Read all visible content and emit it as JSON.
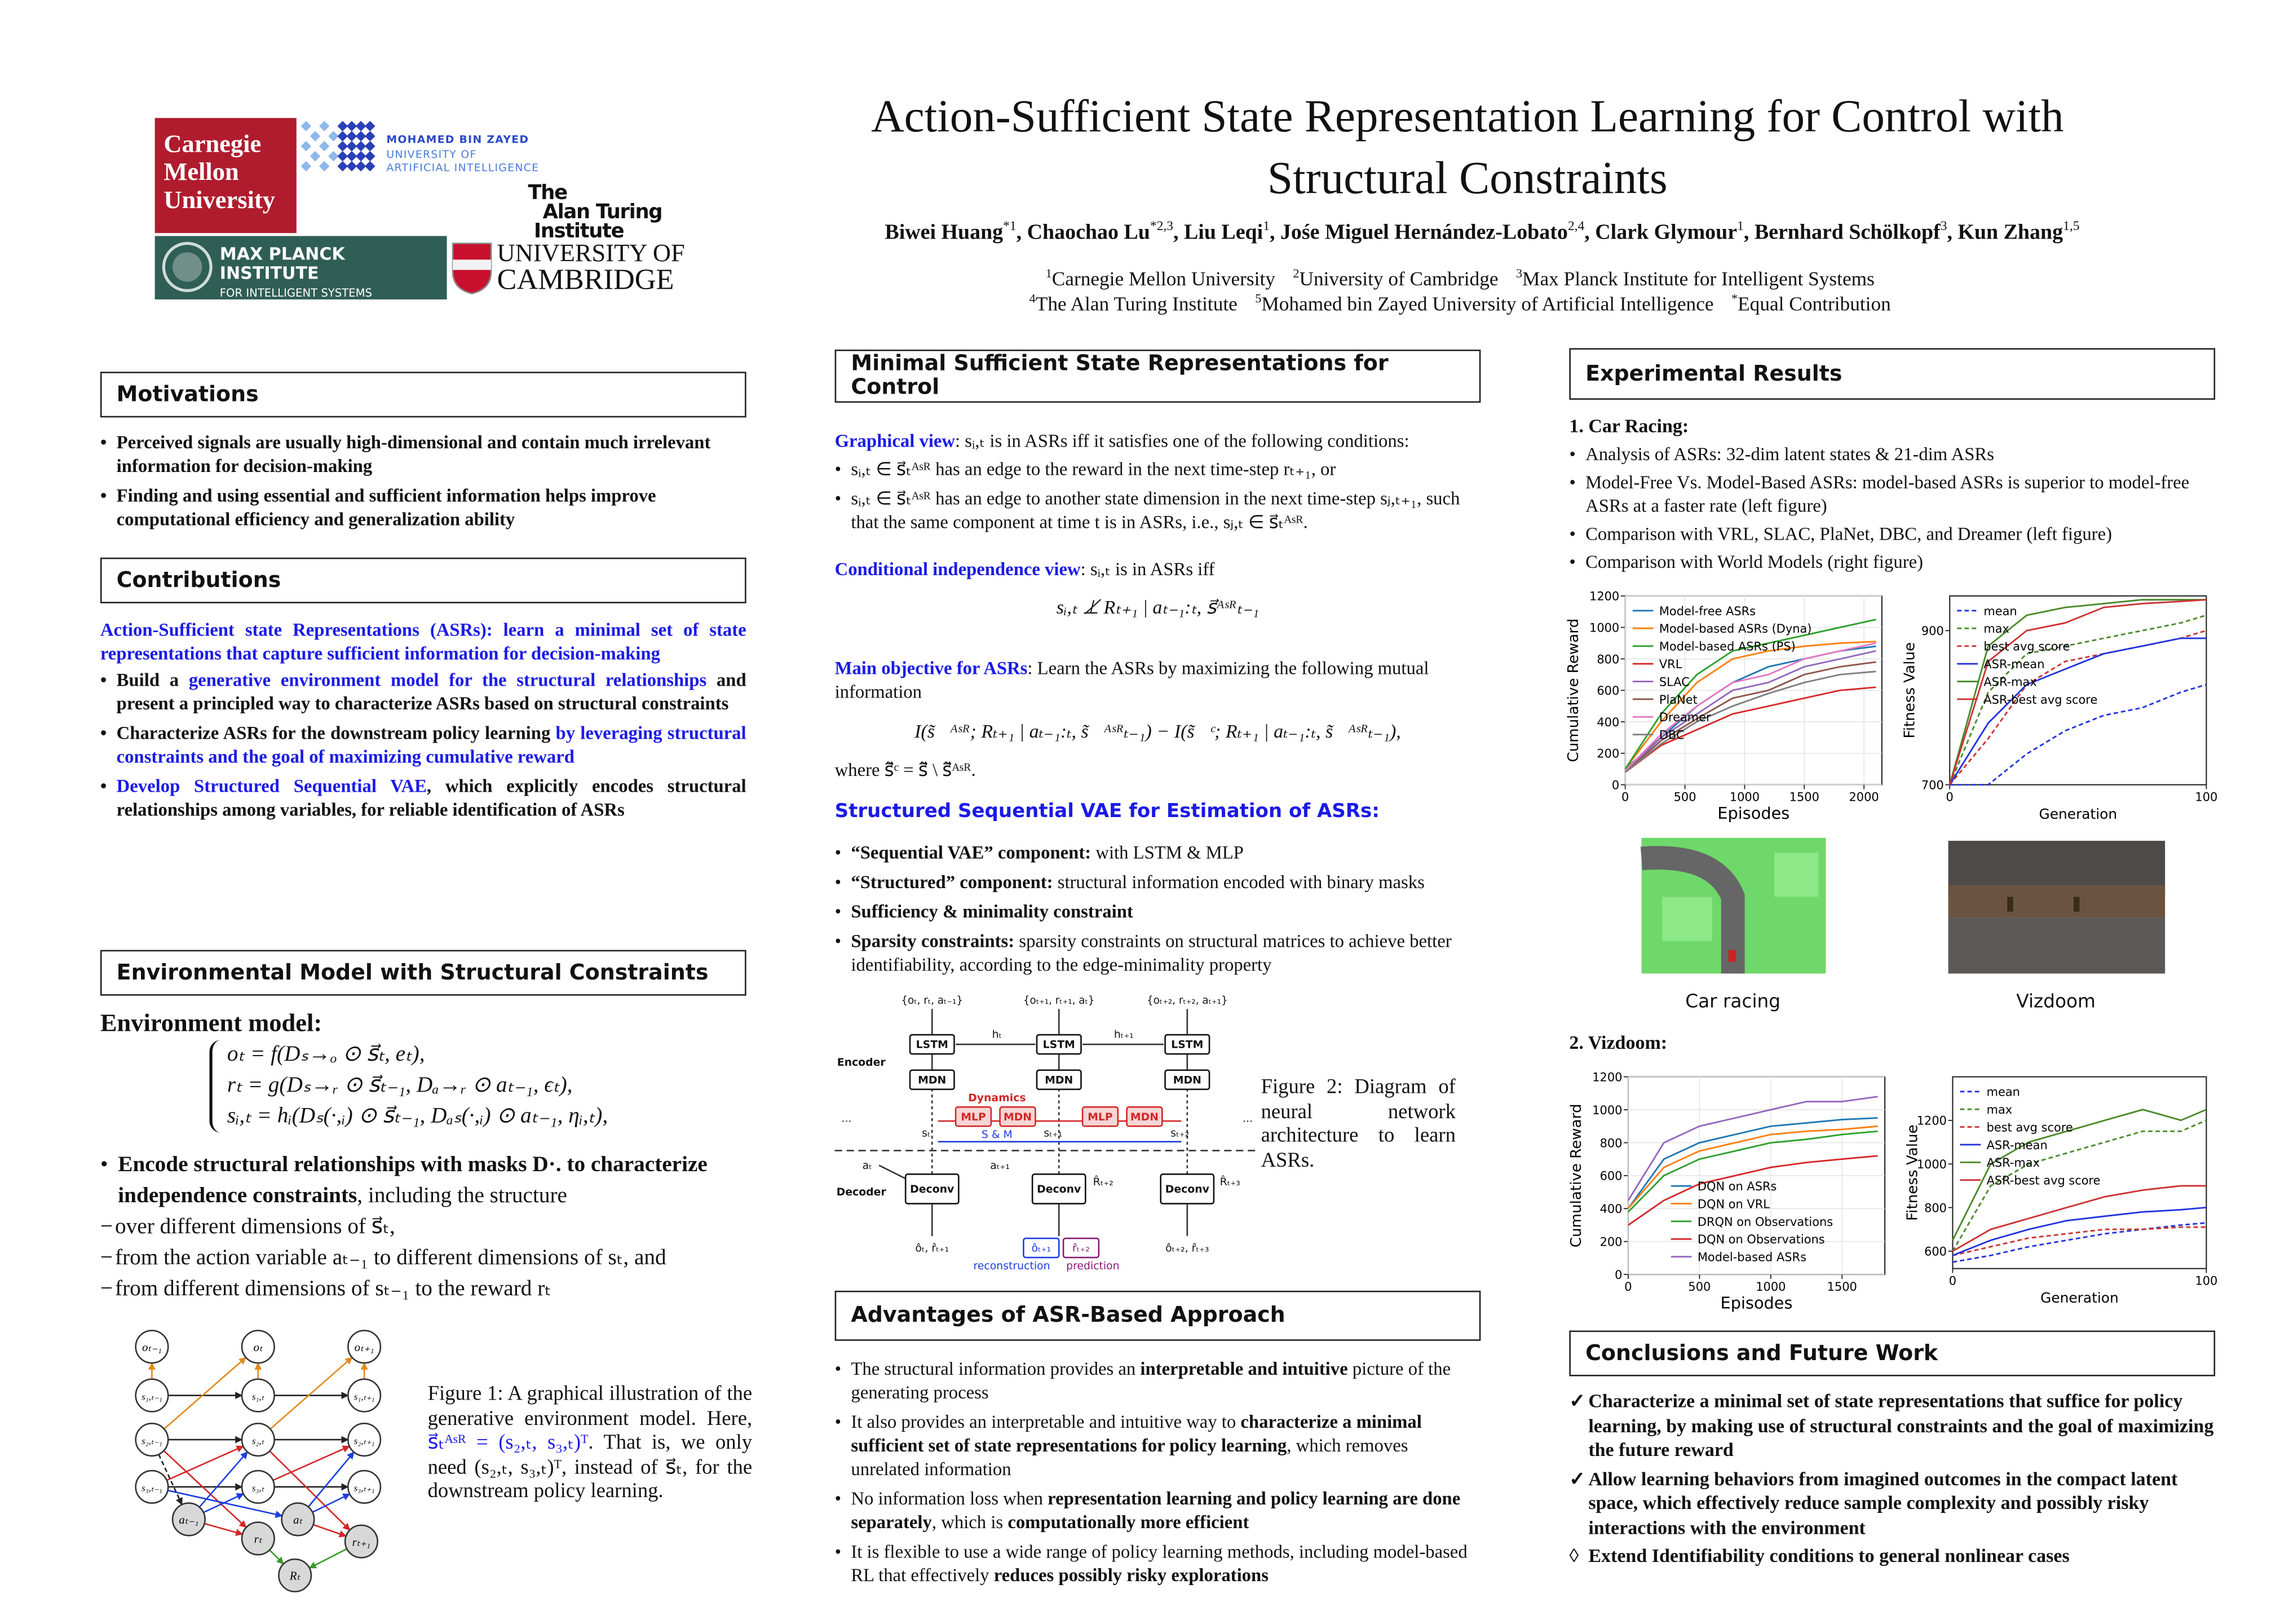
{
  "header": {
    "title_lines": [
      "Action-Sufficient State Representation Learning for Control with",
      "Structural Constraints"
    ],
    "authors": [
      {
        "name": "Biwei Huang",
        "sup": "*1"
      },
      {
        "name": "Chaochao Lu",
        "sup": "*2,3"
      },
      {
        "name": "Liu Leqi",
        "sup": "1"
      },
      {
        "name": "Jośe Miguel Hernández-Lobato",
        "sup": "2,4"
      },
      {
        "name": "Clark Glymour",
        "sup": "1"
      },
      {
        "name": "Bernhard Schölkopf",
        "sup": "3"
      },
      {
        "name": "Kun Zhang",
        "sup": "1,5"
      }
    ],
    "affiliations": [
      [
        {
          "sup": "1",
          "text": "Carnegie Mellon University"
        },
        {
          "sup": "2",
          "text": "University of Cambridge"
        },
        {
          "sup": "3",
          "text": "Max Planck Institute for Intelligent Systems"
        }
      ],
      [
        {
          "sup": "4",
          "text": "The Alan Turing Institute"
        },
        {
          "sup": "5",
          "text": "Mohamed bin Zayed University of Artificial Intelligence"
        },
        {
          "sup": "*",
          "text": "Equal Contribution"
        }
      ]
    ],
    "logos": {
      "cmu": [
        "Carnegie",
        "Mellon",
        "University"
      ],
      "mbzuai": [
        "MOHAMED BIN ZAYED",
        "UNIVERSITY OF",
        "ARTIFICIAL INTELLIGENCE"
      ],
      "turing": [
        "The",
        "Alan Turing",
        "Institute"
      ],
      "mpi": [
        "MAX PLANCK INSTITUTE",
        "FOR INTELLIGENT SYSTEMS"
      ],
      "cambridge": [
        "UNIVERSITY OF",
        "CAMBRIDGE"
      ]
    }
  },
  "motivations": {
    "heading": "Motivations",
    "items": [
      "Perceived signals are usually high-dimensional and contain much irrelevant information for decision-making",
      "Finding and using essential and sufficient information helps improve computational efficiency and generalization ability"
    ]
  },
  "contributions": {
    "heading": "Contributions",
    "intro": "Action-Sufficient state Representations (ASRs): learn a minimal set of state representations that capture sufficient information for decision-making",
    "items": [
      [
        {
          "text": "Build a "
        },
        {
          "text": "generative environment model for the structural relationships",
          "style": "blue"
        },
        {
          "text": " and present a principled way to characterize ASRs based on structural constraints"
        }
      ],
      [
        {
          "text": "Characterize ASRs for the downstream policy learning "
        },
        {
          "text": "by leveraging structural constraints and the goal of maximizing cumulative reward",
          "style": "blue"
        }
      ],
      [
        {
          "text": "Develop Structured Sequential VAE",
          "style": "blue"
        },
        {
          "text": ", which explicitly encodes structural relationships among variables, for reliable identification of ASRs"
        }
      ]
    ]
  },
  "environment": {
    "heading": "Environmental Model with Structural Constraints",
    "subheading": "Environment model:",
    "equations": [
      "oₜ = f(Dₛ→ₒ ⊙ s⃗ₜ, eₜ),",
      "rₜ = g(Dₛ→ᵣ ⊙ s⃗ₜ₋₁, Dₐ→ᵣ ⊙ aₜ₋₁, ϵₜ),",
      "sᵢ,ₜ = hᵢ(Dₛ(·,ᵢ) ⊙ s⃗ₜ₋₁, Dₐₛ(·,ᵢ) ⊙ aₜ₋₁, ηᵢ,ₜ),"
    ],
    "bullet": [
      {
        "text": "Encode structural relationships with masks D·. to characterize independence constraints",
        "style": "b"
      },
      {
        "text": ", including the structure"
      }
    ],
    "dashes": [
      "over different dimensions of s⃗ₜ,",
      "from the action variable aₜ₋₁ to different dimensions of sₜ, and",
      "from different dimensions of sₜ₋₁ to the reward rₜ"
    ],
    "figure1": {
      "nodes": [
        "oₜ₋₁",
        "oₜ",
        "oₜ₊₁",
        "s₁,ₜ₋₁",
        "s₁,ₜ",
        "s₁,ₜ₊₁",
        "s₂,ₜ₋₁",
        "s₂,ₜ",
        "s₂,ₜ₊₁",
        "s₃,ₜ₋₁",
        "s₃,ₜ",
        "s₃,ₜ₊₁",
        "aₜ₋₁",
        "aₜ",
        "rₜ",
        "rₜ₊₁",
        "Rₜ"
      ],
      "caption": [
        {
          "text": "Figure 1: A graphical illustration of the generative environment model. Here, "
        },
        {
          "text": "s⃗ₜᴬˢᴿ = (s₂,ₜ, s₃,ₜ)ᵀ",
          "style": "blue"
        },
        {
          "text": ". That is, we only need (s₂,ₜ, s₃,ₜ)ᵀ, instead of s⃗ₜ, for the downstream policy learning."
        }
      ]
    }
  },
  "minimal": {
    "heading": "Minimal Sufficient State Representations for Control",
    "graphical": [
      {
        "text": "Graphical view",
        "style": "blue"
      },
      {
        "text": ": sᵢ,ₜ is in ASRs iff it satisfies one of the following conditions:"
      }
    ],
    "graphical_items": [
      "sᵢ,ₜ ∈ s⃗ₜᴬˢᴿ has an edge to the reward in the next time-step rₜ₊₁, or",
      "sᵢ,ₜ ∈ s⃗ₜᴬˢᴿ has an edge to another state dimension in the next time-step sⱼ,ₜ₊₁, such that the same component at time t is in ASRs, i.e., sⱼ,ₜ ∈ s⃗ₜᴬˢᴿ."
    ],
    "conditional": [
      {
        "text": "Conditional independence view",
        "style": "blue"
      },
      {
        "text": ": sᵢ,ₜ is in ASRs iff"
      }
    ],
    "conditional_eq": "sᵢ,ₜ ⊥̸ Rₜ₊₁ | aₜ₋₁:ₜ, s⃗ᴬˢᴿₜ₋₁",
    "objective": [
      {
        "text": "Main objective for ASRs",
        "style": "blue"
      },
      {
        "text": ": Learn the ASRs by maximizing the following mutual information"
      }
    ],
    "objective_eq": "I(s̃⃗ᴬˢᴿ; Rₜ₊₁ | aₜ₋₁:ₜ, s̃⃗ᴬˢᴿₜ₋₁) − I(s̃⃗ᶜ; Rₜ₊₁ | aₜ₋₁:ₜ, s̃⃗ᴬˢᴿₜ₋₁),",
    "objective_where": "where s̃⃗ᶜ = s̃⃗ \\ s̃⃗ᴬˢᴿ.",
    "vae_heading": "Structured Sequential VAE for Estimation of ASRs:",
    "vae_items": [
      [
        {
          "text": "“Sequential VAE” component:",
          "style": "b"
        },
        {
          "text": " with LSTM & MLP"
        }
      ],
      [
        {
          "text": "“Structured” component:",
          "style": "b"
        },
        {
          "text": " structural information encoded with binary masks"
        }
      ],
      [
        {
          "text": "Sufficiency & minimality constraint",
          "style": "b"
        }
      ],
      [
        {
          "text": "Sparsity constraints:",
          "style": "b"
        },
        {
          "text": " sparsity constraints on structural matrices to achieve better identifiability, according to the edge-minimality property"
        }
      ]
    ],
    "figure2": {
      "labels": [
        "{oₜ, rₜ, aₜ₋₁}",
        "{oₜ₊₁, rₜ₊₁, aₜ}",
        "{oₜ₊₂, rₜ₊₂, aₜ₊₁}",
        "LSTM",
        "LSTM",
        "LSTM",
        "hₜ",
        "hₜ₊₁",
        "Encoder",
        "MDN",
        "MDN",
        "MDN",
        "Dynamics",
        "MLP",
        "MDN",
        "MLP",
        "MDN",
        "S & M",
        "sₜ",
        "sₜ₊₁",
        "sₜ₊₂",
        "...",
        "...",
        "aₜ",
        "aₜ₊₁",
        "Decoder",
        "Deconv",
        "Deconv",
        "Deconv",
        "R̂ₜ₊₂",
        "R̂ₜ₊₃",
        "ôₜ, r̂ₜ₊₁",
        "ôₜ₊₁",
        "r̂ₜ₊₂",
        "ôₜ₊₂, r̂ₜ₊₃",
        "reconstruction",
        "prediction"
      ],
      "caption": "Figure 2: Diagram of neural network architecture to learn ASRs."
    }
  },
  "advantages": {
    "heading": "Advantages of ASR-Based Approach",
    "items": [
      [
        {
          "text": "The structural information provides an "
        },
        {
          "text": "interpretable and intuitive",
          "style": "b"
        },
        {
          "text": " picture of the generating process"
        }
      ],
      [
        {
          "text": "It also provides an interpretable and intuitive way to "
        },
        {
          "text": "characterize a minimal sufficient set of state representations for policy learning",
          "style": "b"
        },
        {
          "text": ", which removes unrelated information"
        }
      ],
      [
        {
          "text": "No information loss when "
        },
        {
          "text": "representation learning and policy learning are done separately",
          "style": "b"
        },
        {
          "text": ", which is "
        },
        {
          "text": "computationally more efficient",
          "style": "b"
        }
      ],
      [
        {
          "text": "It is flexible to use a wide range of policy learning methods, including model-based RL that effectively "
        },
        {
          "text": "reduces possibly risky explorations",
          "style": "b"
        }
      ]
    ]
  },
  "experiments": {
    "heading": "Experimental Results",
    "car_heading": "1.  Car Racing:",
    "car_items": [
      "Analysis of ASRs: 32-dim latent states & 21-dim ASRs",
      "Model-Free Vs. Model-Based ASRs: model-based ASRs is superior to model-free ASRs at a faster rate (left figure)",
      "Comparison with VRL, SLAC, PlaNet, DBC, and Dreamer (left figure)",
      "Comparison with World Models (right figure)"
    ],
    "image_captions": [
      "Car racing",
      "Vizdoom"
    ],
    "vizdoom_heading": "2.  Vizdoom:"
  },
  "conclusions": {
    "heading": "Conclusions and Future Work",
    "items": [
      {
        "marker": "✓",
        "text": "Characterize a minimal set of state representations that suffice for policy learning, by making use of structural constraints and the goal of maximizing the future reward"
      },
      {
        "marker": "✓",
        "text": "Allow learning behaviors from imagined outcomes in the compact latent space, which effectively reduce sample complexity and possibly risky interactions with the environment"
      },
      {
        "marker": "◊",
        "text": "Extend Identifiability conditions to general nonlinear cases"
      }
    ]
  },
  "chart_data": [
    {
      "type": "line",
      "xlabel": "Episodes",
      "ylabel": "Cumulative Reward",
      "grid": true,
      "legend": "upper left",
      "x": [
        0,
        300,
        600,
        900,
        1200,
        1500,
        1800,
        2100
      ],
      "xlim": [
        0,
        2150
      ],
      "xticks": [
        0,
        500,
        1000,
        1500,
        2000
      ],
      "ylim": [
        0,
        1200
      ],
      "yticks": [
        0,
        200,
        400,
        600,
        800,
        1000,
        1200
      ],
      "series": [
        {
          "name": "Model-free ASRs",
          "color": "#1f77b4",
          "values": [
            100,
            300,
            500,
            650,
            750,
            800,
            850,
            880
          ]
        },
        {
          "name": "Model-based ASRs (Dyna)",
          "color": "#ff7f0e",
          "values": [
            100,
            400,
            650,
            800,
            850,
            880,
            900,
            910
          ]
        },
        {
          "name": "Model-based ASRs (PS)",
          "color": "#2ca02c",
          "values": [
            100,
            450,
            700,
            850,
            900,
            950,
            1000,
            1050
          ]
        },
        {
          "name": "VRL",
          "color": "#d62728",
          "values": [
            80,
            250,
            350,
            450,
            500,
            550,
            600,
            620
          ]
        },
        {
          "name": "SLAC",
          "color": "#9467bd",
          "values": [
            80,
            300,
            450,
            600,
            650,
            750,
            800,
            850
          ]
        },
        {
          "name": "PlaNet",
          "color": "#8c564b",
          "values": [
            80,
            280,
            420,
            550,
            600,
            700,
            750,
            780
          ]
        },
        {
          "name": "Dreamer",
          "color": "#e377c2",
          "values": [
            90,
            320,
            500,
            650,
            700,
            800,
            850,
            900
          ]
        },
        {
          "name": "DBC",
          "color": "#7f7f7f",
          "values": [
            80,
            260,
            400,
            500,
            580,
            650,
            700,
            720
          ]
        }
      ]
    },
    {
      "type": "line",
      "xlabel": "Generation",
      "ylabel": "Fitness Value",
      "grid": false,
      "legend": "upper left",
      "x": [
        0,
        15,
        30,
        45,
        60,
        75,
        90,
        100
      ],
      "xlim": [
        0,
        100
      ],
      "xticks": [
        0,
        100
      ],
      "ylim": [
        700,
        945
      ],
      "yticks": [
        700,
        900
      ],
      "series": [
        {
          "name": "mean",
          "color": "#2233dd",
          "dash": true,
          "values": [
            700,
            700,
            740,
            770,
            790,
            800,
            820,
            830
          ]
        },
        {
          "name": "max",
          "color": "#4a8a2a",
          "dash": true,
          "values": [
            700,
            820,
            870,
            880,
            890,
            900,
            910,
            920
          ]
        },
        {
          "name": "best avg score",
          "color": "#cc3333",
          "dash": true,
          "values": [
            700,
            760,
            830,
            860,
            870,
            880,
            890,
            900
          ]
        },
        {
          "name": "ASR-mean",
          "color": "#2233dd",
          "values": [
            700,
            780,
            830,
            850,
            870,
            880,
            890,
            890
          ]
        },
        {
          "name": "ASR-max",
          "color": "#4a8a2a",
          "values": [
            700,
            880,
            920,
            930,
            935,
            940,
            940,
            940
          ]
        },
        {
          "name": "ASR-best avg score",
          "color": "#cc3333",
          "values": [
            700,
            860,
            900,
            910,
            930,
            935,
            938,
            940
          ]
        }
      ]
    },
    {
      "type": "line",
      "xlabel": "Episodes",
      "ylabel": "Cumulative Reward",
      "grid": true,
      "legend": "lower center",
      "x": [
        0,
        250,
        500,
        750,
        1000,
        1250,
        1500,
        1750
      ],
      "xlim": [
        0,
        1800
      ],
      "xticks": [
        0,
        500,
        1000,
        1500
      ],
      "ylim": [
        0,
        1200
      ],
      "yticks": [
        0,
        200,
        400,
        600,
        800,
        1000,
        1200
      ],
      "series": [
        {
          "name": "DQN on ASRs",
          "color": "#1f77b4",
          "values": [
            400,
            700,
            800,
            850,
            900,
            920,
            940,
            950
          ]
        },
        {
          "name": "DQN on VRL",
          "color": "#ff7f0e",
          "values": [
            400,
            650,
            750,
            800,
            850,
            870,
            880,
            900
          ]
        },
        {
          "name": "DRQN on Observations",
          "color": "#2ca02c",
          "values": [
            380,
            600,
            700,
            750,
            800,
            820,
            850,
            870
          ]
        },
        {
          "name": "DQN on Observations",
          "color": "#d62728",
          "values": [
            300,
            450,
            550,
            600,
            650,
            680,
            700,
            720
          ]
        },
        {
          "name": "Model-based ASRs",
          "color": "#9467bd",
          "values": [
            450,
            800,
            900,
            950,
            1000,
            1050,
            1050,
            1080
          ]
        }
      ]
    },
    {
      "type": "line",
      "xlabel": "Generation",
      "ylabel": "Fitness Value",
      "grid": false,
      "legend": "upper left",
      "x": [
        0,
        15,
        30,
        45,
        60,
        75,
        90,
        100
      ],
      "xlim": [
        0,
        100
      ],
      "xticks": [
        0,
        100
      ],
      "ylim": [
        520,
        1400
      ],
      "yticks": [
        600,
        800,
        1000,
        1200
      ],
      "series": [
        {
          "name": "mean",
          "color": "#2233dd",
          "dash": true,
          "values": [
            550,
            580,
            620,
            650,
            680,
            700,
            720,
            730
          ]
        },
        {
          "name": "max",
          "color": "#4a8a2a",
          "dash": true,
          "values": [
            600,
            900,
            1000,
            1050,
            1100,
            1150,
            1150,
            1200
          ]
        },
        {
          "name": "best avg score",
          "color": "#cc3333",
          "dash": true,
          "values": [
            580,
            620,
            660,
            680,
            700,
            700,
            710,
            710
          ]
        },
        {
          "name": "ASR-mean",
          "color": "#2233dd",
          "values": [
            580,
            650,
            700,
            740,
            760,
            780,
            790,
            800
          ]
        },
        {
          "name": "ASR-max",
          "color": "#4a8a2a",
          "values": [
            650,
            1000,
            1100,
            1150,
            1200,
            1250,
            1200,
            1250
          ]
        },
        {
          "name": "ASR-best avg score",
          "color": "#cc3333",
          "values": [
            600,
            700,
            750,
            800,
            850,
            880,
            900,
            900
          ]
        }
      ]
    }
  ]
}
